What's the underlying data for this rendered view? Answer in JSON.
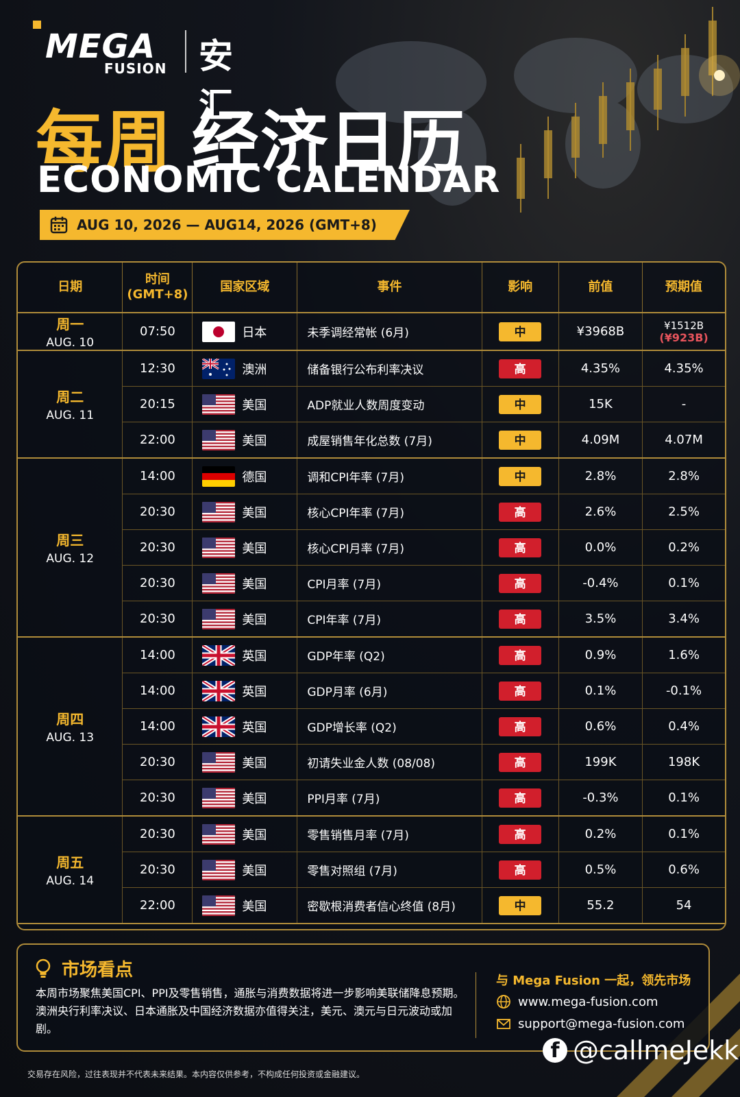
{
  "brand": {
    "logo_text": "MEGA",
    "logo_sub": "FUSION",
    "logo_cn": "安汇"
  },
  "header": {
    "title_cn_gold": "每周",
    "title_cn_white": "经济日历",
    "title_en": "ECONOMIC CALENDAR",
    "date_range": "AUG 10, 2026 — AUG14, 2026 (GMT+8)"
  },
  "table": {
    "headers": {
      "date": "日期",
      "time_1": "时间",
      "time_2": "(GMT+8)",
      "country": "国家区域",
      "event": "事件",
      "impact": "影响",
      "previous": "前值",
      "forecast": "预期值"
    },
    "days": [
      {
        "day": "周一",
        "date": "AUG. 10"
      },
      {
        "day": "周二",
        "date": "AUG. 11"
      },
      {
        "day": "周三",
        "date": "AUG. 12"
      },
      {
        "day": "周四",
        "date": "AUG. 13"
      },
      {
        "day": "周五",
        "date": "AUG. 14"
      }
    ],
    "rows": [
      {
        "time": "07:50",
        "country": "日本",
        "event": "未季调经常帐 (6月)",
        "impact": "中",
        "previous": "¥3968B",
        "forecast": "¥1512B",
        "forecast_alt": "(¥923B)"
      },
      {
        "time": "12:30",
        "country": "澳洲",
        "event": "储备银行公布利率决议",
        "impact": "高",
        "previous": "4.35%",
        "forecast": "4.35%"
      },
      {
        "time": "20:15",
        "country": "美国",
        "event": "ADP就业人数周度变动",
        "impact": "中",
        "previous": "15K",
        "forecast": "-"
      },
      {
        "time": "22:00",
        "country": "美国",
        "event": "成屋销售年化总数 (7月)",
        "impact": "中",
        "previous": "4.09M",
        "forecast": "4.07M"
      },
      {
        "time": "14:00",
        "country": "德国",
        "event": "调和CPI年率 (7月)",
        "impact": "中",
        "previous": "2.8%",
        "forecast": "2.8%"
      },
      {
        "time": "20:30",
        "country": "美国",
        "event": "核心CPI年率 (7月)",
        "impact": "高",
        "previous": "2.6%",
        "forecast": "2.5%"
      },
      {
        "time": "20:30",
        "country": "美国",
        "event": "核心CPI月率 (7月)",
        "impact": "高",
        "previous": "0.0%",
        "forecast": "0.2%"
      },
      {
        "time": "20:30",
        "country": "美国",
        "event": "CPI月率 (7月)",
        "impact": "高",
        "previous": "-0.4%",
        "forecast": "0.1%"
      },
      {
        "time": "20:30",
        "country": "美国",
        "event": "CPI年率 (7月)",
        "impact": "高",
        "previous": "3.5%",
        "forecast": "3.4%"
      },
      {
        "time": "14:00",
        "country": "英国",
        "event": "GDP年率 (Q2)",
        "impact": "高",
        "previous": "0.9%",
        "forecast": "1.6%"
      },
      {
        "time": "14:00",
        "country": "英国",
        "event": "GDP月率 (6月)",
        "impact": "高",
        "previous": "0.1%",
        "forecast": "-0.1%"
      },
      {
        "time": "14:00",
        "country": "英国",
        "event": "GDP增长率 (Q2)",
        "impact": "高",
        "previous": "0.6%",
        "forecast": "0.4%"
      },
      {
        "time": "20:30",
        "country": "美国",
        "event": "初请失业金人数 (08/08)",
        "impact": "高",
        "previous": "199K",
        "forecast": "198K"
      },
      {
        "time": "20:30",
        "country": "美国",
        "event": "PPI月率 (7月)",
        "impact": "高",
        "previous": "-0.3%",
        "forecast": "0.1%"
      },
      {
        "time": "20:30",
        "country": "美国",
        "event": "零售销售月率 (7月)",
        "impact": "高",
        "previous": "0.2%",
        "forecast": "0.1%"
      },
      {
        "time": "20:30",
        "country": "美国",
        "event": "零售对照组 (7月)",
        "impact": "高",
        "previous": "0.5%",
        "forecast": "0.6%"
      },
      {
        "time": "22:00",
        "country": "美国",
        "event": "密歇根消费者信心终值 (8月)",
        "impact": "中",
        "previous": "55.2",
        "forecast": "54"
      }
    ]
  },
  "panel": {
    "heading": "市场看点",
    "text": "本周市场聚焦美国CPI、PPI及零售销售，通胀与消费数据将进一步影响美联储降息预期。澳洲央行利率决议、日本通胀及中国经济数据亦值得关注，美元、澳元与日元波动或加剧。",
    "right_heading": "与 Mega Fusion 一起，领先市场",
    "website": "www.mega-fusion.com",
    "email": "support@mega-fusion.com"
  },
  "social": {
    "handle": "@callmeJekk"
  },
  "disclaimer": "交易存在风险，过往表现并不代表未来结果。本内容仅供参考，不构成任何投资或金融建议。",
  "colors": {
    "gold": "#f5b82e",
    "high": "#d11f2c",
    "background": "#0b0d12"
  }
}
